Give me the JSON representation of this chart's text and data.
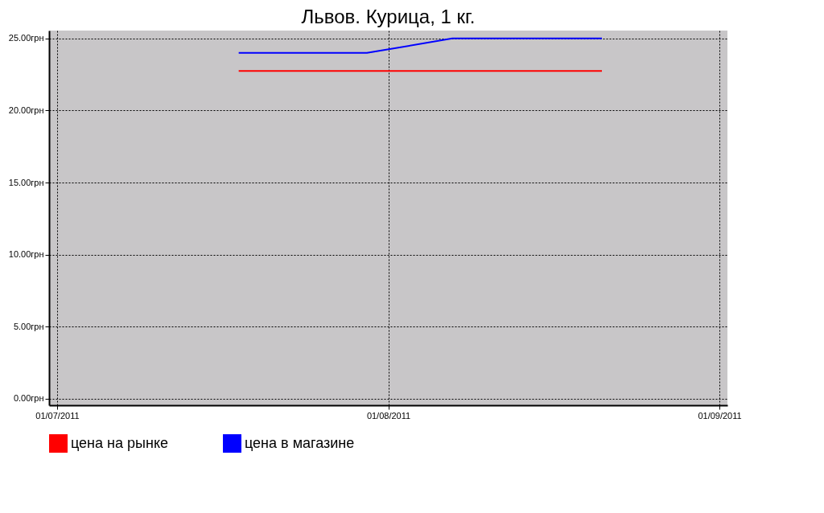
{
  "chart_data": {
    "type": "line",
    "title": "Львов. Курица, 1 кг.",
    "series": [
      {
        "name": "цена на рынке",
        "color": "#ff0000",
        "x": [
          "2011-07-18",
          "2011-07-23",
          "2011-07-30",
          "2011-08-07",
          "2011-08-14",
          "2011-08-21"
        ],
        "values": [
          22.75,
          22.75,
          22.75,
          22.75,
          22.75,
          22.75
        ]
      },
      {
        "name": "цена в магазине",
        "color": "#0000ff",
        "x": [
          "2011-07-18",
          "2011-07-23",
          "2011-07-30",
          "2011-08-07",
          "2011-08-14",
          "2011-08-21"
        ],
        "values": [
          24,
          24,
          24,
          25,
          25,
          25
        ]
      }
    ],
    "xlim": [
      "2011-06-30T06:00",
      "2011-09-01T18:00"
    ],
    "xticks": [
      {
        "value": "2011-07-01",
        "label": "01/07/2011"
      },
      {
        "value": "2011-08-01",
        "label": "01/08/2011"
      },
      {
        "value": "2011-09-01",
        "label": "01/09/2011"
      }
    ],
    "ylim": [
      -0.45,
      25.55
    ],
    "yticks": [
      {
        "value": 0,
        "label": "0.00грн"
      },
      {
        "value": 5,
        "label": "5.00грн"
      },
      {
        "value": 10,
        "label": "10.00грн"
      },
      {
        "value": 15,
        "label": "15.00грн"
      },
      {
        "value": 20,
        "label": "20.00грн"
      },
      {
        "value": 25,
        "label": "25.00грн"
      }
    ],
    "grid": true,
    "legend": "bottom left",
    "line_style": "solid",
    "marker": "none"
  }
}
